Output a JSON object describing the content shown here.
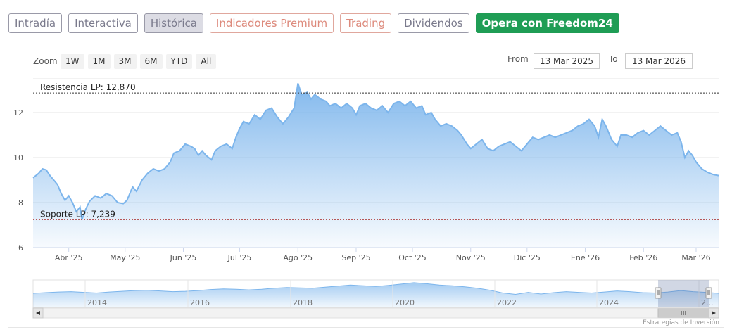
{
  "tabs": [
    {
      "label": "Intradía",
      "kind": "normal"
    },
    {
      "label": "Interactiva",
      "kind": "normal"
    },
    {
      "label": "Histórica",
      "kind": "active"
    },
    {
      "label": "Indicadores Premium",
      "kind": "premium"
    },
    {
      "label": "Trading",
      "kind": "trading"
    },
    {
      "label": "Dividendos",
      "kind": "normal"
    },
    {
      "label": "Opera con Freedom24",
      "kind": "cta"
    }
  ],
  "range_selector": {
    "zoom_label": "Zoom",
    "buttons": [
      "1W",
      "1M",
      "3M",
      "6M",
      "YTD",
      "All"
    ],
    "from_label": "From",
    "from_value": "13 Mar 2025",
    "to_label": "To",
    "to_value": "13 Mar 2026"
  },
  "credit": "Estrategias de Inversión",
  "colors": {
    "line": "#7cb5ec",
    "fill_top": "#7cb5ec",
    "cta": "#1f9d55",
    "tab_border": "#9a9aa8",
    "premium": "#dd8a7c"
  },
  "chart_data": {
    "type": "area",
    "title": "",
    "xlabel": "",
    "ylabel": "",
    "ylim": [
      6,
      13.5
    ],
    "y_ticks": [
      "6",
      "8",
      "10",
      "12"
    ],
    "x_ticks": [
      {
        "label": "Abr '25",
        "day": 19
      },
      {
        "label": "May '25",
        "day": 49
      },
      {
        "label": "Jun '25",
        "day": 80
      },
      {
        "label": "Jul '25",
        "day": 110
      },
      {
        "label": "Ago '25",
        "day": 141
      },
      {
        "label": "Sep '25",
        "day": 172
      },
      {
        "label": "Oct '25",
        "day": 202
      },
      {
        "label": "Nov '25",
        "day": 233
      },
      {
        "label": "Dic '25",
        "day": 263
      },
      {
        "label": "Ene '26",
        "day": 294
      },
      {
        "label": "Feb '26",
        "day": 325
      },
      {
        "label": "Mar '26",
        "day": 353
      }
    ],
    "x_range_days": [
      0,
      365
    ],
    "series": [
      {
        "values_day_value": [
          [
            0,
            9.1
          ],
          [
            3,
            9.3
          ],
          [
            5,
            9.5
          ],
          [
            7,
            9.45
          ],
          [
            9,
            9.2
          ],
          [
            11,
            9.0
          ],
          [
            13,
            8.8
          ],
          [
            15,
            8.4
          ],
          [
            17,
            8.1
          ],
          [
            19,
            8.3
          ],
          [
            21,
            8.0
          ],
          [
            23,
            7.6
          ],
          [
            25,
            7.8
          ],
          [
            26,
            7.24
          ],
          [
            28,
            7.7
          ],
          [
            30,
            8.05
          ],
          [
            33,
            8.3
          ],
          [
            36,
            8.2
          ],
          [
            39,
            8.4
          ],
          [
            42,
            8.3
          ],
          [
            45,
            8.0
          ],
          [
            48,
            7.95
          ],
          [
            50,
            8.1
          ],
          [
            53,
            8.7
          ],
          [
            55,
            8.5
          ],
          [
            58,
            9.0
          ],
          [
            61,
            9.3
          ],
          [
            64,
            9.5
          ],
          [
            67,
            9.4
          ],
          [
            70,
            9.5
          ],
          [
            73,
            9.8
          ],
          [
            75,
            10.2
          ],
          [
            78,
            10.3
          ],
          [
            81,
            10.6
          ],
          [
            84,
            10.5
          ],
          [
            86,
            10.4
          ],
          [
            88,
            10.1
          ],
          [
            90,
            10.3
          ],
          [
            92,
            10.1
          ],
          [
            95,
            9.9
          ],
          [
            97,
            10.3
          ],
          [
            100,
            10.5
          ],
          [
            103,
            10.6
          ],
          [
            106,
            10.4
          ],
          [
            108,
            10.9
          ],
          [
            110,
            11.3
          ],
          [
            112,
            11.6
          ],
          [
            115,
            11.5
          ],
          [
            118,
            11.9
          ],
          [
            121,
            11.7
          ],
          [
            124,
            12.1
          ],
          [
            127,
            12.2
          ],
          [
            130,
            11.8
          ],
          [
            133,
            11.5
          ],
          [
            136,
            11.8
          ],
          [
            139,
            12.2
          ],
          [
            141,
            13.3
          ],
          [
            143,
            12.8
          ],
          [
            146,
            12.9
          ],
          [
            148,
            12.6
          ],
          [
            150,
            12.8
          ],
          [
            153,
            12.6
          ],
          [
            156,
            12.5
          ],
          [
            158,
            12.3
          ],
          [
            161,
            12.4
          ],
          [
            164,
            12.2
          ],
          [
            167,
            12.4
          ],
          [
            170,
            12.2
          ],
          [
            172,
            11.9
          ],
          [
            174,
            12.3
          ],
          [
            177,
            12.4
          ],
          [
            180,
            12.2
          ],
          [
            183,
            12.1
          ],
          [
            186,
            12.3
          ],
          [
            189,
            12.0
          ],
          [
            192,
            12.4
          ],
          [
            195,
            12.5
          ],
          [
            198,
            12.3
          ],
          [
            201,
            12.5
          ],
          [
            204,
            12.2
          ],
          [
            207,
            12.3
          ],
          [
            209,
            11.9
          ],
          [
            212,
            12.0
          ],
          [
            214,
            11.7
          ],
          [
            217,
            11.4
          ],
          [
            220,
            11.5
          ],
          [
            223,
            11.4
          ],
          [
            226,
            11.2
          ],
          [
            228,
            11.0
          ],
          [
            231,
            10.6
          ],
          [
            233,
            10.4
          ],
          [
            236,
            10.6
          ],
          [
            239,
            10.8
          ],
          [
            242,
            10.4
          ],
          [
            245,
            10.3
          ],
          [
            248,
            10.5
          ],
          [
            251,
            10.6
          ],
          [
            254,
            10.7
          ],
          [
            257,
            10.5
          ],
          [
            260,
            10.3
          ],
          [
            263,
            10.6
          ],
          [
            266,
            10.9
          ],
          [
            269,
            10.8
          ],
          [
            272,
            10.9
          ],
          [
            275,
            11.0
          ],
          [
            278,
            10.9
          ],
          [
            281,
            11.0
          ],
          [
            284,
            11.1
          ],
          [
            287,
            11.2
          ],
          [
            290,
            11.4
          ],
          [
            293,
            11.5
          ],
          [
            296,
            11.7
          ],
          [
            299,
            11.4
          ],
          [
            301,
            10.9
          ],
          [
            303,
            11.7
          ],
          [
            305,
            11.4
          ],
          [
            308,
            10.8
          ],
          [
            311,
            10.5
          ],
          [
            313,
            11.0
          ],
          [
            316,
            11.0
          ],
          [
            319,
            10.9
          ],
          [
            322,
            11.1
          ],
          [
            325,
            11.2
          ],
          [
            328,
            11.0
          ],
          [
            331,
            11.2
          ],
          [
            334,
            11.4
          ],
          [
            337,
            11.2
          ],
          [
            340,
            11.0
          ],
          [
            343,
            11.1
          ],
          [
            345,
            10.7
          ],
          [
            347,
            10.0
          ],
          [
            349,
            10.3
          ],
          [
            351,
            10.1
          ],
          [
            353,
            9.8
          ],
          [
            356,
            9.5
          ],
          [
            359,
            9.35
          ],
          [
            362,
            9.25
          ],
          [
            365,
            9.2
          ]
        ]
      }
    ],
    "annotations": [
      {
        "label": "Resistencia LP: 12,870",
        "value": 12.87,
        "color": "#333333"
      },
      {
        "label": "Soporte LP: 7,239",
        "value": 7.239,
        "color": "#b04040"
      }
    ],
    "navigator": {
      "year_labels": [
        "2014",
        "2016",
        "2018",
        "2020",
        "2022",
        "2024",
        "2..."
      ],
      "values": [
        4.1,
        4.3,
        4.5,
        4.6,
        4.4,
        4.2,
        4.5,
        4.7,
        4.9,
        5.0,
        4.8,
        4.6,
        4.7,
        4.9,
        5.2,
        5.4,
        5.3,
        5.1,
        5.3,
        5.6,
        5.8,
        5.7,
        5.6,
        5.9,
        6.2,
        6.5,
        6.3,
        6.1,
        6.4,
        6.8,
        7.2,
        6.9,
        6.5,
        6.3,
        6.0,
        5.6,
        5.0,
        4.2,
        3.8,
        4.4,
        3.9,
        4.3,
        4.6,
        4.4,
        4.2,
        4.5,
        4.8,
        4.6,
        4.3,
        4.2,
        4.5,
        4.9,
        4.6,
        4.4,
        4.1
      ],
      "grid": true,
      "legend": "none"
    }
  }
}
